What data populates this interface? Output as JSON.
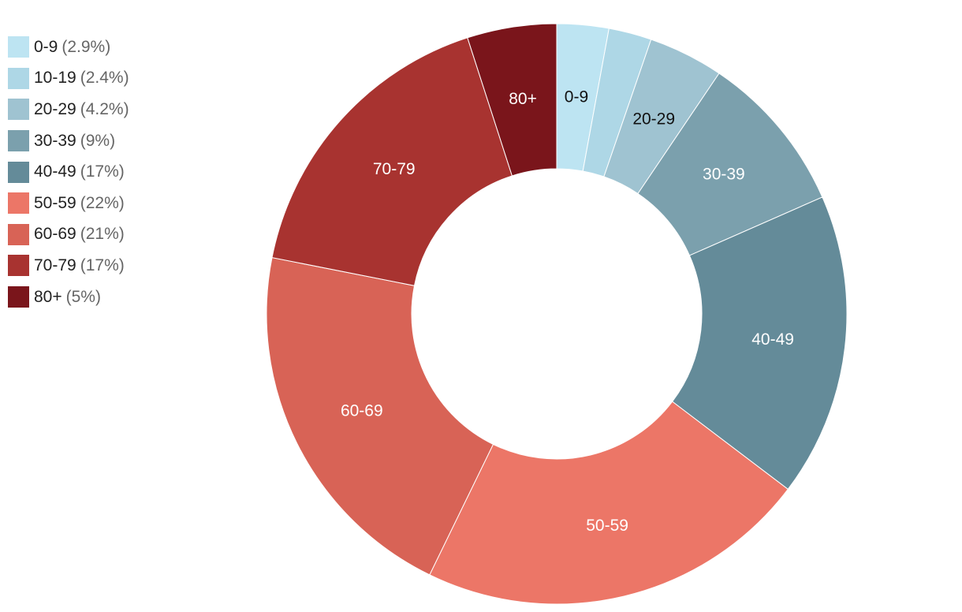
{
  "chart_data": {
    "type": "pie",
    "variant": "donut",
    "title": "",
    "legend_position": "top-left",
    "slices": [
      {
        "label": "0-9",
        "value": 2.9,
        "value_text": "(2.9%)",
        "color": "#bde4f2",
        "label_color": "#111111"
      },
      {
        "label": "10-19",
        "value": 2.4,
        "value_text": "(2.4%)",
        "color": "#aed7e6",
        "label_color": "#111111"
      },
      {
        "label": "20-29",
        "value": 4.2,
        "value_text": "(4.2%)",
        "color": "#9fc3d1",
        "label_color": "#111111"
      },
      {
        "label": "30-39",
        "value": 9,
        "value_text": "(9%)",
        "color": "#7ba0ad",
        "label_color": "#ffffff"
      },
      {
        "label": "40-49",
        "value": 17,
        "value_text": "(17%)",
        "color": "#648b99",
        "label_color": "#ffffff"
      },
      {
        "label": "50-59",
        "value": 22,
        "value_text": "(22%)",
        "color": "#ec7667",
        "label_color": "#ffffff"
      },
      {
        "label": "60-69",
        "value": 21,
        "value_text": "(21%)",
        "color": "#d86356",
        "label_color": "#ffffff"
      },
      {
        "label": "70-79",
        "value": 17,
        "value_text": "(17%)",
        "color": "#a83330",
        "label_color": "#ffffff"
      },
      {
        "label": "80+",
        "value": 5,
        "value_text": "(5%)",
        "color": "#7a151b",
        "label_color": "#ffffff"
      }
    ],
    "slice_labels_shown": [
      "0-9",
      "20-29",
      "30-39",
      "40-49",
      "50-59",
      "60-69",
      "70-79",
      "80+"
    ]
  }
}
